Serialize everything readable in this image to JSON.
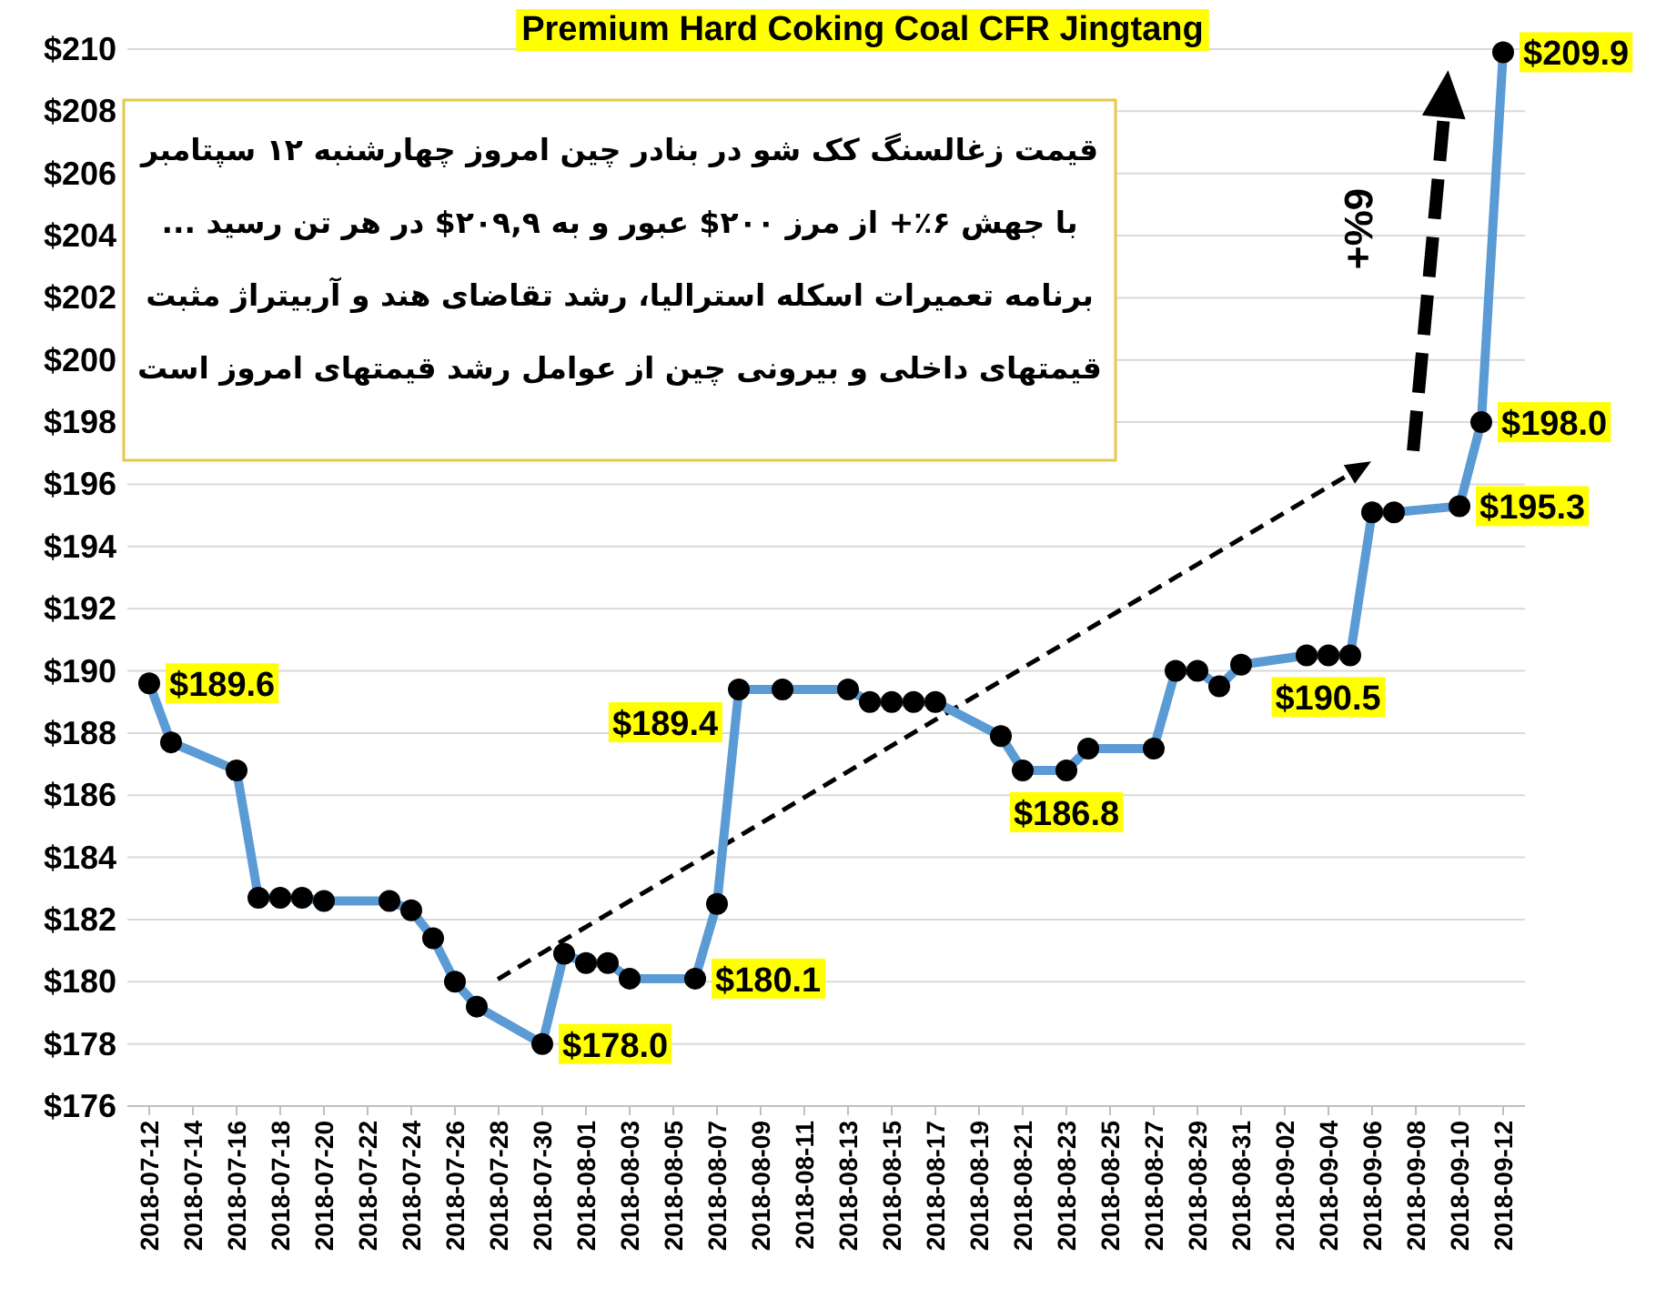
{
  "chart_data": {
    "type": "line",
    "title": "Premium Hard Coking Coal CFR Jingtang",
    "annotations": [
      "قیمت زغالسنگ کک شو در بنادر چین امروز چهارشنبه ۱۲ سپتامبر\nبا جهش ۶٪+ از مرز ۲۰۰$ عبور و به ۲۰۹,۹$ در هر تن رسید ...\nبرنامه تعمیرات اسکله استرالیا، رشد تقاضای هند و آربیتراژ مثبت\nقیمتهای داخلی و بیرونی چین از عوامل رشد قیمتهای امروز است",
      "6%+"
    ],
    "x": [
      "2018-07-12",
      "2018-07-13",
      "2018-07-16",
      "2018-07-17",
      "2018-07-18",
      "2018-07-19",
      "2018-07-20",
      "2018-07-23",
      "2018-07-24",
      "2018-07-25",
      "2018-07-26",
      "2018-07-27",
      "2018-07-30",
      "2018-07-31",
      "2018-08-01",
      "2018-08-02",
      "2018-08-03",
      "2018-08-06",
      "2018-08-07",
      "2018-08-08",
      "2018-08-10",
      "2018-08-13",
      "2018-08-14",
      "2018-08-15",
      "2018-08-16",
      "2018-08-17",
      "2018-08-20",
      "2018-08-21",
      "2018-08-23",
      "2018-08-24",
      "2018-08-27",
      "2018-08-28",
      "2018-08-29",
      "2018-08-30",
      "2018-08-31",
      "2018-09-03",
      "2018-09-04",
      "2018-09-05",
      "2018-09-06",
      "2018-09-07",
      "2018-09-10",
      "2018-09-11",
      "2018-09-12"
    ],
    "series": [
      {
        "color": "#5b9bd5",
        "values": [
          189.6,
          187.7,
          186.8,
          182.7,
          182.7,
          182.7,
          182.6,
          182.6,
          182.3,
          181.4,
          180.0,
          179.2,
          178.0,
          180.9,
          180.6,
          180.6,
          180.1,
          180.1,
          182.5,
          189.4,
          189.4,
          189.4,
          189.0,
          189.0,
          189.0,
          189.0,
          187.9,
          186.8,
          186.8,
          187.5,
          187.5,
          190.0,
          190.0,
          189.5,
          190.2,
          190.5,
          190.5,
          190.5,
          195.1,
          195.1,
          195.3,
          198.0,
          209.9
        ],
        "value_labels": [
          "$189.6",
          null,
          null,
          null,
          null,
          null,
          null,
          null,
          null,
          null,
          null,
          null,
          "$178.0",
          null,
          null,
          null,
          null,
          "$180.1",
          null,
          "$189.4",
          null,
          null,
          null,
          null,
          null,
          null,
          null,
          null,
          "$186.8",
          null,
          null,
          null,
          null,
          null,
          null,
          null,
          "$190.5",
          null,
          null,
          null,
          "$195.3",
          "$198.0",
          "$209.9"
        ]
      }
    ],
    "xlim": [
      "2018-07-11",
      "2018-09-13"
    ],
    "xticks": [
      "2018-07-12",
      "2018-07-14",
      "2018-07-16",
      "2018-07-18",
      "2018-07-20",
      "2018-07-22",
      "2018-07-24",
      "2018-07-26",
      "2018-07-28",
      "2018-07-30",
      "2018-08-01",
      "2018-08-03",
      "2018-08-05",
      "2018-08-07",
      "2018-08-09",
      "2018-08-11",
      "2018-08-13",
      "2018-08-15",
      "2018-08-17",
      "2018-08-19",
      "2018-08-21",
      "2018-08-23",
      "2018-08-25",
      "2018-08-27",
      "2018-08-29",
      "2018-08-31",
      "2018-09-02",
      "2018-09-04",
      "2018-09-06",
      "2018-09-08",
      "2018-09-10",
      "2018-09-12"
    ],
    "ylim": [
      176,
      210
    ],
    "yticks": [
      {
        "value": 176,
        "label": "$176"
      },
      {
        "value": 178,
        "label": "$178"
      },
      {
        "value": 180,
        "label": "$180"
      },
      {
        "value": 182,
        "label": "$182"
      },
      {
        "value": 184,
        "label": "$184"
      },
      {
        "value": 186,
        "label": "$186"
      },
      {
        "value": 188,
        "label": "$188"
      },
      {
        "value": 190,
        "label": "$190"
      },
      {
        "value": 192,
        "label": "$192"
      },
      {
        "value": 194,
        "label": "$194"
      },
      {
        "value": 196,
        "label": "$196"
      },
      {
        "value": 198,
        "label": "$198"
      },
      {
        "value": 200,
        "label": "$200"
      },
      {
        "value": 202,
        "label": "$202"
      },
      {
        "value": 204,
        "label": "$204"
      },
      {
        "value": 206,
        "label": "$206"
      },
      {
        "value": 208,
        "label": "$208"
      },
      {
        "value": 210,
        "label": "$210"
      }
    ],
    "grid": "y",
    "marker": "circle"
  }
}
